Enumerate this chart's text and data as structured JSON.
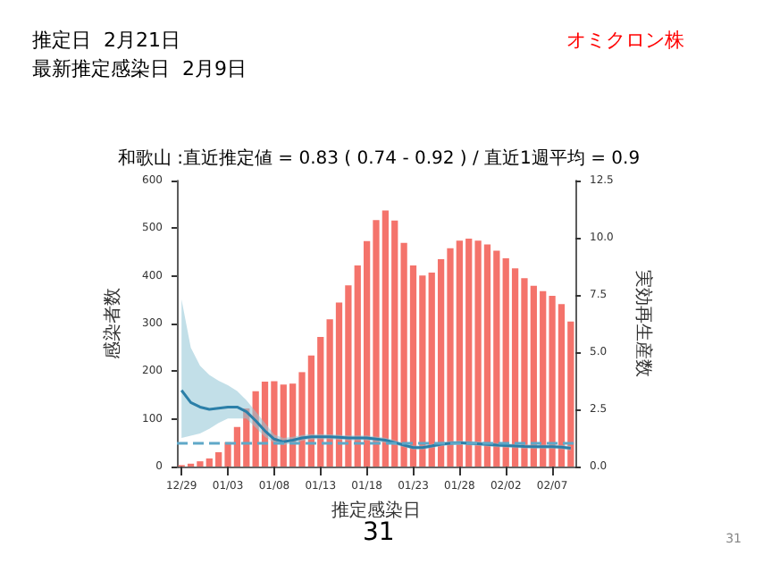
{
  "chart_data": {
    "type": "bar",
    "title": "和歌山 :直近推定値 = 0.83 ( 0.74 - 0.92 ) / 直近1週平均 = 0.9",
    "xlabel": "推定感染日",
    "ylabel": "感染者数",
    "y2label": "実効再生産数",
    "annotations": [
      "推定日  2月21日",
      "最新推定感染日  2月9日",
      "オミクロン株",
      "31",
      "31"
    ],
    "categories": [
      "12/29",
      null,
      null,
      null,
      null,
      "01/03",
      null,
      null,
      null,
      null,
      "01/08",
      null,
      null,
      null,
      null,
      "01/13",
      null,
      null,
      null,
      null,
      "01/18",
      null,
      null,
      null,
      null,
      "01/23",
      null,
      null,
      null,
      null,
      "01/28",
      null,
      null,
      null,
      null,
      "02/02",
      null,
      null,
      null,
      null,
      "02/07",
      null,
      null
    ],
    "series": [
      {
        "color": "#f4736b",
        "values": [
          3,
          6,
          11,
          17,
          30,
          51,
          83,
          122,
          158,
          178,
          179,
          172,
          174,
          198,
          233,
          272,
          309,
          344,
          380,
          422,
          473,
          517,
          537,
          516,
          469,
          422,
          401,
          407,
          435,
          458,
          474,
          478,
          474,
          466,
          453,
          437,
          416,
          395,
          379,
          368,
          358,
          341,
          304
        ]
      },
      {
        "type": "line",
        "axis": "y2",
        "color": "#2b7fa8",
        "values": [
          3.33,
          2.8,
          2.6,
          2.5,
          2.55,
          2.6,
          2.6,
          2.4,
          2.0,
          1.56,
          1.2,
          1.08,
          1.15,
          1.25,
          1.3,
          1.3,
          1.3,
          1.28,
          1.25,
          1.25,
          1.25,
          1.2,
          1.15,
          1.05,
          0.94,
          0.83,
          0.83,
          0.9,
          0.98,
          1.02,
          1.04,
          1.02,
          1.0,
          0.97,
          0.94,
          0.92,
          0.9,
          0.88,
          0.87,
          0.87,
          0.87,
          0.85,
          0.8
        ],
        "lower": [
          1.25,
          1.35,
          1.45,
          1.65,
          1.9,
          2.1,
          2.1,
          2.1,
          1.7,
          1.3,
          1.04,
          0.94,
          1.02,
          1.12,
          1.18,
          1.19,
          1.19,
          1.17,
          1.14,
          1.14,
          1.14,
          1.09,
          1.04,
          0.95,
          0.85,
          0.74,
          0.74,
          0.81,
          0.89,
          0.93,
          0.95,
          0.93,
          0.91,
          0.88,
          0.85,
          0.83,
          0.81,
          0.79,
          0.78,
          0.78,
          0.78,
          0.76,
          0.7
        ],
        "upper": [
          7.3,
          5.2,
          4.4,
          4.0,
          3.75,
          3.55,
          3.3,
          2.9,
          2.4,
          1.9,
          1.4,
          1.25,
          1.3,
          1.38,
          1.42,
          1.42,
          1.41,
          1.39,
          1.36,
          1.36,
          1.36,
          1.31,
          1.26,
          1.15,
          1.03,
          0.92,
          0.92,
          0.99,
          1.07,
          1.11,
          1.13,
          1.11,
          1.09,
          1.06,
          1.03,
          1.01,
          0.99,
          0.97,
          0.96,
          0.96,
          0.96,
          0.94,
          0.9
        ]
      }
    ],
    "ylim": [
      0,
      600
    ],
    "yticks": [
      0,
      100,
      200,
      300,
      400,
      500,
      600
    ],
    "y2lim": [
      0,
      12.5
    ],
    "y2ticks": [
      {
        "value": 0,
        "label": "0.0"
      },
      {
        "value": 2.5,
        "label": "2.5"
      },
      {
        "value": 5,
        "label": "5.0"
      },
      {
        "value": 7.5,
        "label": "7.5"
      },
      {
        "value": 10,
        "label": "10.0"
      },
      {
        "value": 12.5,
        "label": "12.5"
      }
    ],
    "ref_lines": [
      {
        "axis": "y2",
        "value": 1,
        "color": "#5fa8c8",
        "line_style": "dashed"
      }
    ],
    "marker": "none",
    "grid": false
  }
}
